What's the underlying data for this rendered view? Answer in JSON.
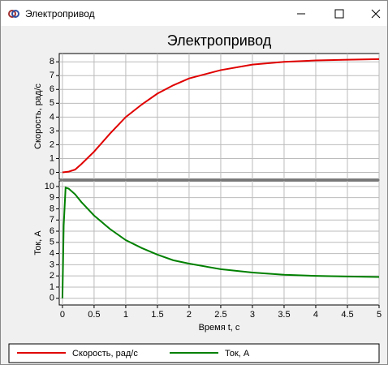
{
  "window": {
    "title": "Электропривод"
  },
  "chart_data": [
    {
      "type": "line",
      "title": "Электропривод",
      "ylabel": "Скорость, рад/с",
      "x": [
        0,
        0.1,
        0.2,
        0.3,
        0.5,
        0.75,
        1,
        1.25,
        1.5,
        1.75,
        2,
        2.5,
        3,
        3.5,
        4,
        4.5,
        5
      ],
      "series": [
        {
          "name": "Скорость, рад/с",
          "color": "#e00000",
          "values": [
            0,
            0.05,
            0.2,
            0.6,
            1.5,
            2.8,
            4.0,
            4.9,
            5.7,
            6.3,
            6.8,
            7.4,
            7.8,
            8.0,
            8.1,
            8.15,
            8.2
          ]
        }
      ],
      "xlim": [
        -0.05,
        5
      ],
      "ylim": [
        -0.5,
        8.6
      ],
      "yticks": [
        0,
        1,
        2,
        3,
        4,
        5,
        6,
        7,
        8
      ],
      "grid": true
    },
    {
      "type": "line",
      "ylabel": "Ток, А",
      "xlabel": "Время t, с",
      "x": [
        0,
        0.02,
        0.05,
        0.1,
        0.2,
        0.3,
        0.5,
        0.75,
        1,
        1.25,
        1.5,
        1.75,
        2,
        2.5,
        3,
        3.5,
        4,
        4.5,
        5
      ],
      "series": [
        {
          "name": "Ток, А",
          "color": "#008000",
          "values": [
            0,
            6.5,
            9.9,
            9.8,
            9.3,
            8.6,
            7.4,
            6.2,
            5.2,
            4.5,
            3.9,
            3.4,
            3.1,
            2.6,
            2.3,
            2.1,
            2.0,
            1.95,
            1.9
          ]
        }
      ],
      "xlim": [
        -0.05,
        5
      ],
      "ylim": [
        -0.6,
        10.5
      ],
      "yticks": [
        0,
        1,
        2,
        3,
        4,
        5,
        6,
        7,
        8,
        9,
        10
      ],
      "xticks": [
        0,
        0.5,
        1,
        1.5,
        2,
        2.5,
        3,
        3.5,
        4,
        4.5,
        5
      ],
      "grid": true
    }
  ]
}
